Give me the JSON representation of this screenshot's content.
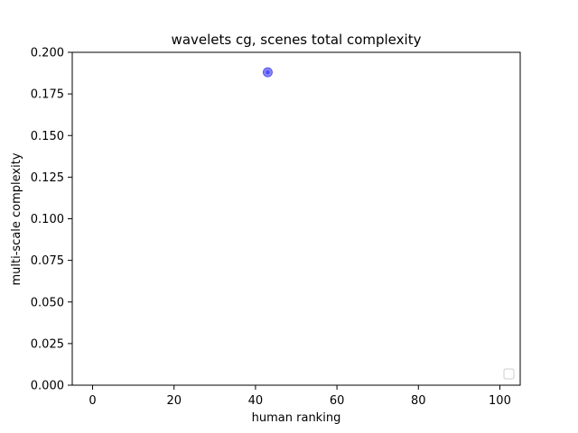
{
  "chart_data": {
    "type": "scatter",
    "title": "wavelets cg, scenes total complexity",
    "xlabel": "human ranking",
    "ylabel": "multi-scale complexity",
    "xlim": [
      -5,
      105
    ],
    "ylim": [
      0,
      0.2
    ],
    "x_ticks": [
      0,
      20,
      40,
      60,
      80,
      100
    ],
    "y_ticks": [
      0.0,
      0.025,
      0.05,
      0.075,
      0.1,
      0.125,
      0.15,
      0.175,
      0.2
    ],
    "x_tick_labels": [
      "0",
      "20",
      "40",
      "60",
      "80",
      "100"
    ],
    "y_tick_labels": [
      "0.000",
      "0.025",
      "0.050",
      "0.075",
      "0.100",
      "0.125",
      "0.150",
      "0.175",
      "0.200"
    ],
    "grid": false,
    "legend": "lower-right",
    "series": [
      {
        "color": "#3b3bf0",
        "points": [
          {
            "x": 43,
            "y": 0.188
          }
        ]
      }
    ]
  }
}
